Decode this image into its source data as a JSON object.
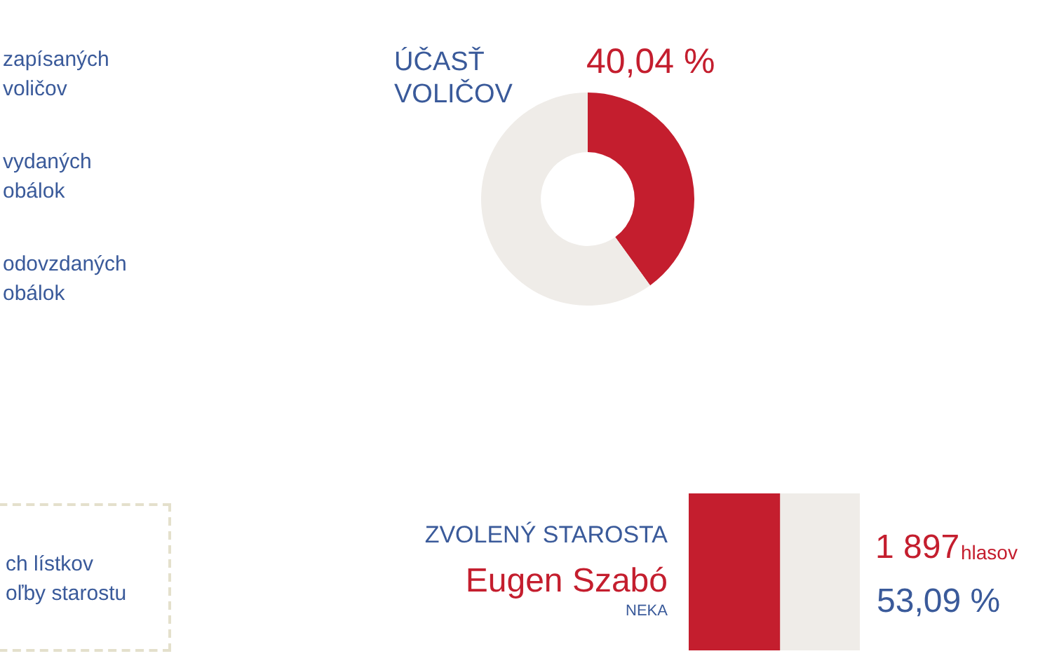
{
  "chart_data": [
    {
      "type": "other",
      "annotations": [
        "zapísaných voličov",
        "vydaných obálok",
        "odovzdaných obálok"
      ]
    },
    {
      "type": "donut",
      "title": "ÚČASŤ VOLIČOV",
      "annotations": [
        "40,04 %"
      ],
      "categories": [
        null,
        null
      ],
      "values": [
        40.04,
        59.96
      ],
      "colors": [
        "#c41e2e",
        "#efece8"
      ],
      "legend": false
    },
    {
      "type": "other",
      "annotations": [
        "ch lístkov",
        "oľby starostu"
      ]
    },
    {
      "type": "bar",
      "orientation": "horizontal",
      "stacked": true,
      "title": "ZVOLENÝ STAROSTA",
      "subtitle": "Eugen Szabó",
      "annotations": [
        "NEKA",
        "1 897",
        "hlasov"
      ],
      "categories": [
        null
      ],
      "tick_labels": false,
      "legend": false,
      "series": [
        {
          "color": "#c41e2e",
          "values": [
            53.09
          ],
          "value_labels": [
            "53,09 %"
          ]
        },
        {
          "color": "#efece8",
          "values": [
            46.91
          ],
          "value_labels": [
            null
          ]
        }
      ]
    }
  ]
}
